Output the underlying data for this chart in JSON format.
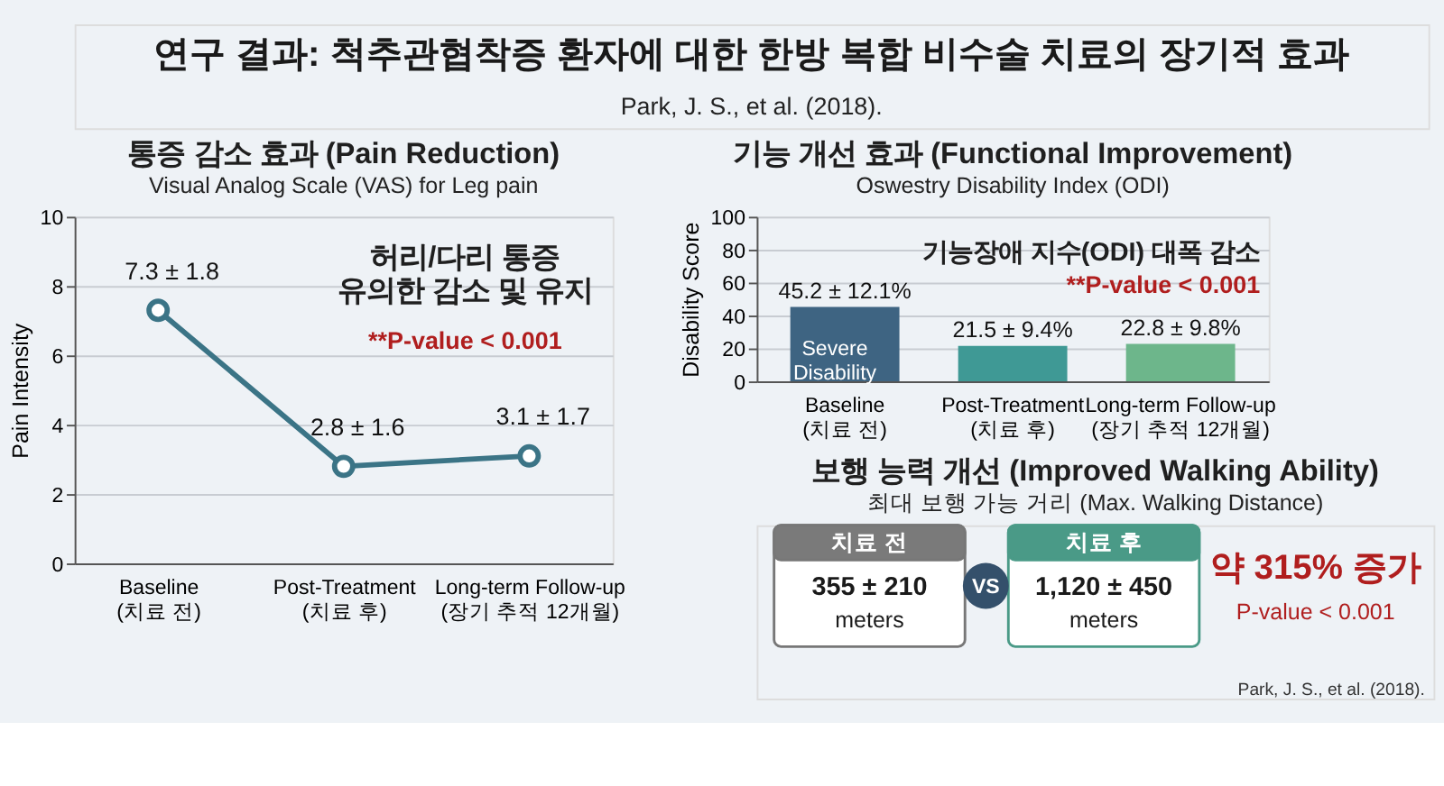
{
  "chart_data": [
    {
      "type": "other",
      "title": "연구 결과: 척추관협착증 환자에 대한 한방 복합 비수술 치료의 장기적 효과",
      "subtitle": "Park, J. S., et al. (2018)."
    },
    {
      "type": "line",
      "title": "통증 감소 효과 (Pain Reduction)",
      "subtitle": "Visual Analog Scale (VAS) for Leg pain",
      "ylabel": "Pain Intensity",
      "categories": [
        "Baseline (치료 전)",
        "Post-Treatment (치료 후)",
        "Long-term Follow-up (장기 추적 12개월)"
      ],
      "series": [
        {
          "color": "#3b7486",
          "values": [
            7.3,
            2.8,
            3.1
          ],
          "value_labels": [
            "7.3 ± 1.8",
            "2.8 ± 1.6",
            "3.1 ± 1.7"
          ]
        }
      ],
      "ylim": [
        0,
        10
      ],
      "yticks": [
        0,
        2,
        4,
        6,
        8,
        10
      ],
      "grid": "y",
      "marker": "circle",
      "line_style": "solid",
      "annotations": [
        "허리/다리 통증\n유의한 감소 및 유지",
        "**P-value < 0.001"
      ]
    },
    {
      "type": "bar",
      "title": "기능 개선 효과 (Functional Improvement)",
      "subtitle": "Oswestry Disability Index (ODI)",
      "ylabel": "Disability Score",
      "categories": [
        "Baseline (치료 전)",
        "Post-Treatment (치료 후)",
        "Long-term Follow-up (장기 추적 12개월)"
      ],
      "values": [
        45.2,
        21.5,
        22.8
      ],
      "colors": [
        "#3e6482",
        "#3f9995",
        "#6db68b"
      ],
      "value_labels": [
        "45.2 ± 12.1%",
        "21.5 ± 9.4%",
        "22.8 ± 9.8%"
      ],
      "ylim": [
        0,
        100
      ],
      "yticks": [
        0,
        20,
        40,
        60,
        80,
        100
      ],
      "grid": "y",
      "annotations": [
        "Severe\nDisability",
        "기능장애 지수(ODI) 대폭 감소",
        "**P-value < 0.001"
      ]
    },
    {
      "type": "other",
      "title": "보행 능력 개선 (Improved Walking Ability)",
      "subtitle": "최대 보행 가능 거리 (Max. Walking Distance)",
      "annotations": [
        "치료 전",
        "355 ± 210",
        "meters",
        "VS",
        "치료 후",
        "1,120 ± 450",
        "meters",
        "약 315% 증가",
        "P-value < 0.001",
        "Park, J. S., et al. (2018)."
      ]
    }
  ]
}
